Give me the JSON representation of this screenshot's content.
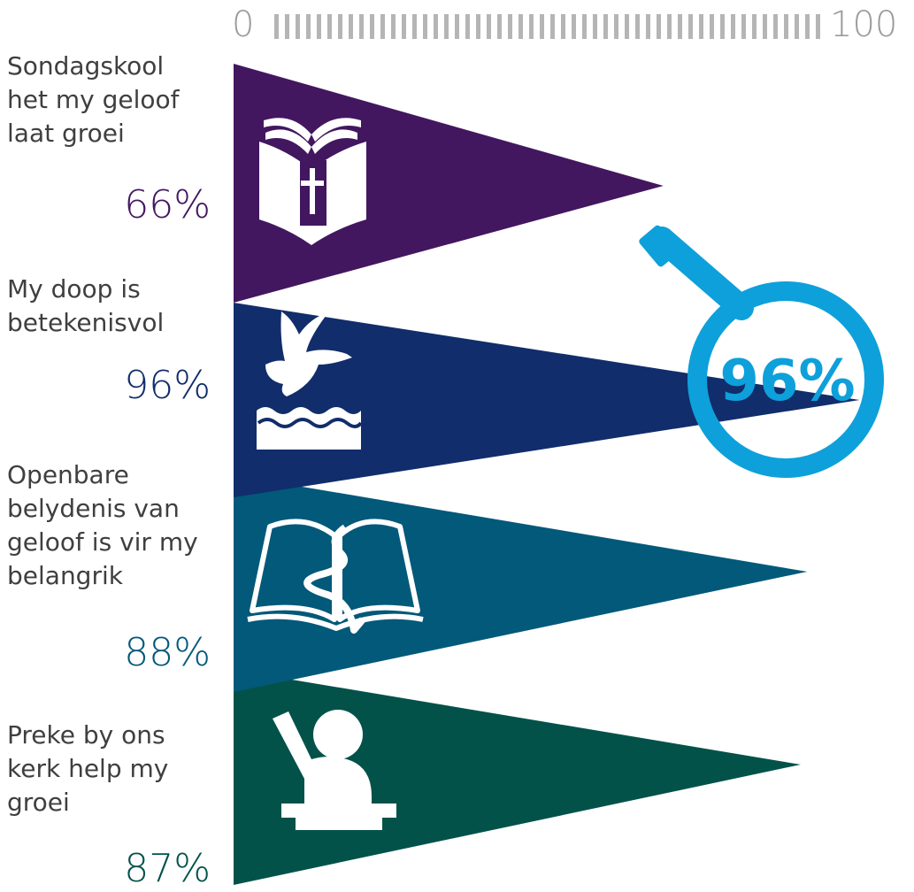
{
  "chart_data": {
    "type": "bar",
    "orientation": "horizontal",
    "scale": {
      "min": 0,
      "max": 100,
      "min_label": "0",
      "max_label": "100"
    },
    "categories": [
      "Sondagskool het my geloof laat groei",
      "My doop is betekenisvol",
      "Openbare belydenis van geloof is vir my belangrik",
      "Preke by ons kerk help my groei"
    ],
    "values": [
      66,
      96,
      88,
      87
    ],
    "value_labels": [
      "66%",
      "96%",
      "88%",
      "87%"
    ],
    "label_lines": [
      [
        "Sondagskool",
        "het my geloof",
        "laat groei"
      ],
      [
        "My doop is",
        "betekenisvol"
      ],
      [
        "Openbare",
        "belydenis van",
        "geloof is vir my",
        "belangrik"
      ],
      [
        "Preke by ons",
        "kerk help my",
        "groei"
      ]
    ],
    "colors": [
      "#42175f",
      "#112d6b",
      "#02597a",
      "#02524a"
    ],
    "icons": [
      "bible-cross-icon",
      "dove-water-icon",
      "bible-river-icon",
      "preacher-pulpit-icon"
    ],
    "highlight": {
      "category_index": 1,
      "label": "96%",
      "color": "#0ea0da",
      "icon": "magnifying-glass-icon"
    }
  }
}
